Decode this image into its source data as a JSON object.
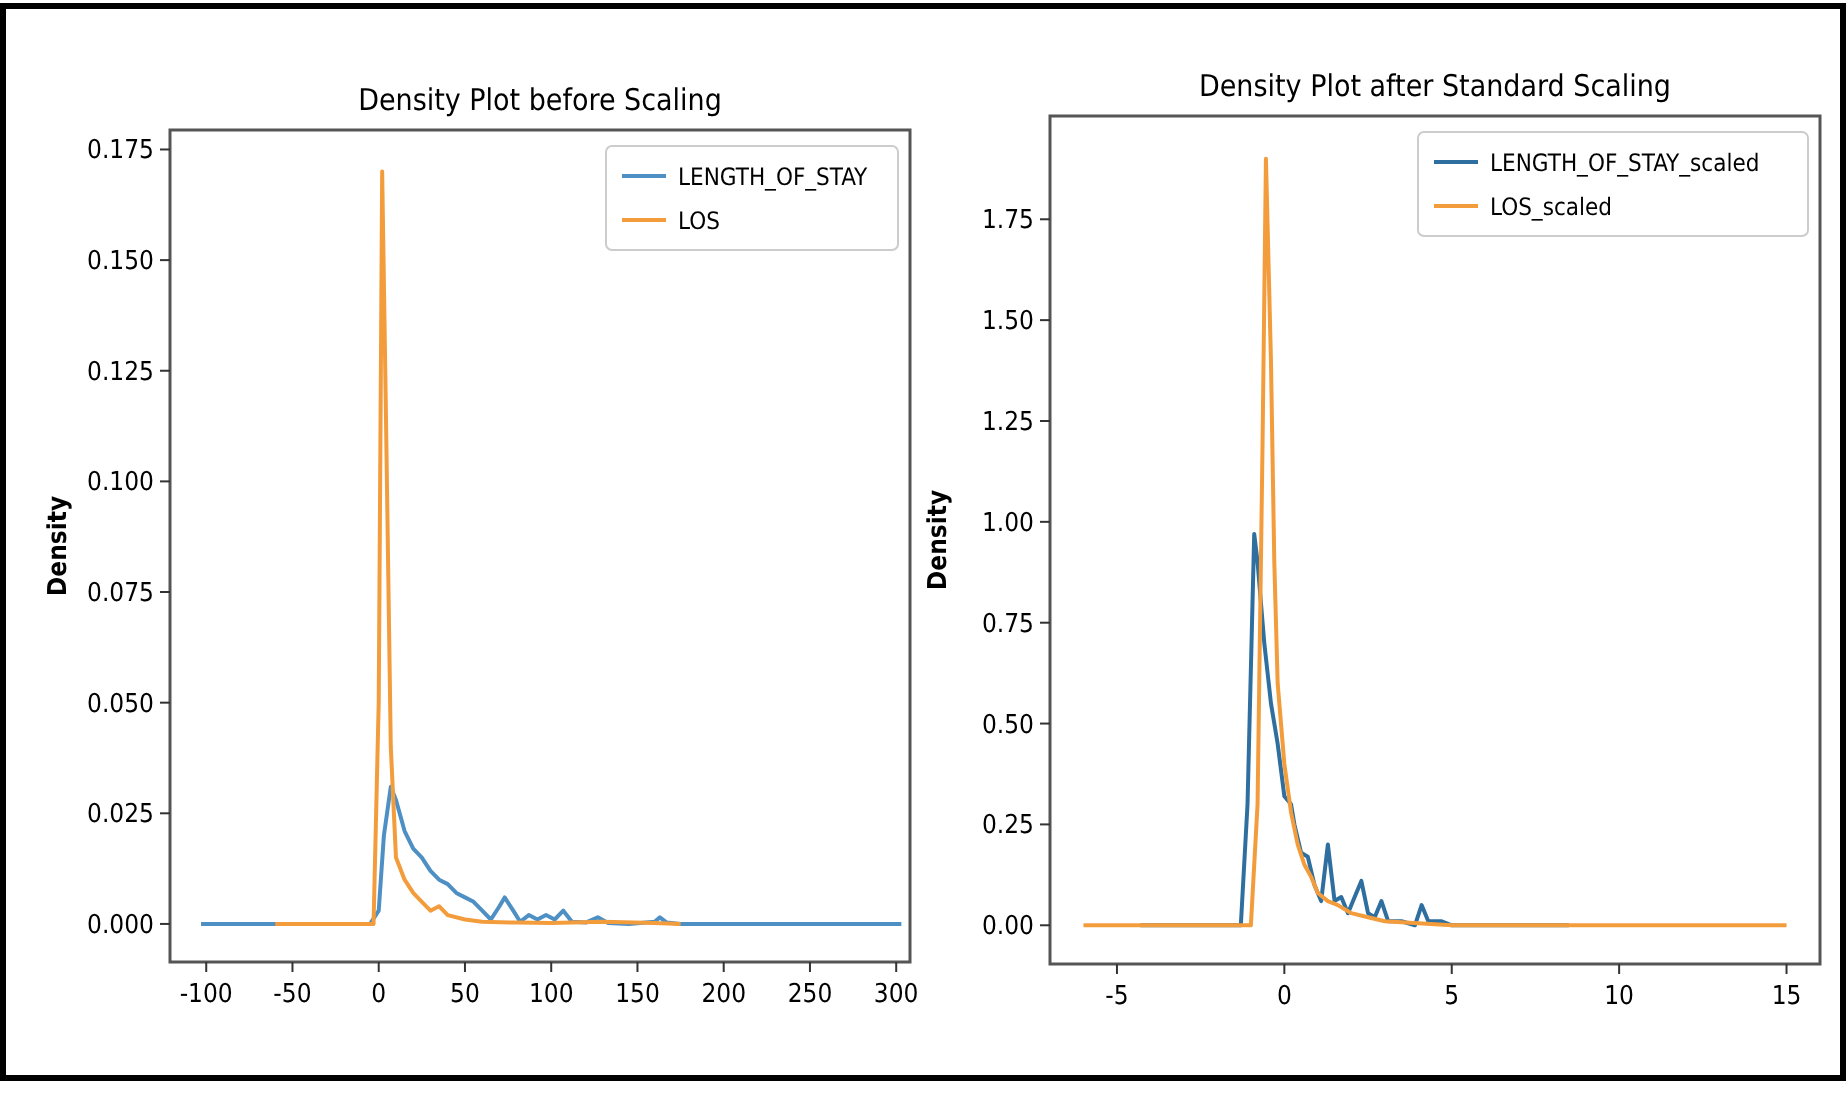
{
  "chart_data": [
    {
      "type": "line",
      "title": "Density Plot before Scaling",
      "ylabel": "Density",
      "legend": "top right",
      "xlim": [
        -121,
        308
      ],
      "ylim": [
        -0.0086,
        0.1794
      ],
      "xticks": [
        -100,
        -50,
        0,
        50,
        100,
        150,
        200,
        250,
        300
      ],
      "yticks": [
        {
          "value": 0,
          "label": "0.000"
        },
        {
          "value": 0.025,
          "label": "0.025"
        },
        {
          "value": 0.05,
          "label": "0.050"
        },
        {
          "value": 0.075,
          "label": "0.075"
        },
        {
          "value": 0.1,
          "label": "0.100"
        },
        {
          "value": 0.125,
          "label": "0.125"
        },
        {
          "value": 0.15,
          "label": "0.150"
        },
        {
          "value": 0.175,
          "label": "0.175"
        }
      ],
      "series": [
        {
          "name": "LENGTH_OF_STAY",
          "color": "#4e8fc4",
          "x": [
            -103,
            -5,
            0,
            3,
            7,
            10,
            15,
            20,
            25,
            30,
            35,
            40,
            45,
            50,
            55,
            60,
            65,
            70,
            73,
            78,
            82,
            87,
            92,
            97,
            102,
            107,
            112,
            120,
            127,
            133,
            145,
            160,
            163,
            167,
            175,
            303
          ],
          "values": [
            0,
            0,
            0.003,
            0.02,
            0.031,
            0.028,
            0.021,
            0.017,
            0.015,
            0.012,
            0.01,
            0.009,
            0.007,
            0.006,
            0.005,
            0.003,
            0.001,
            0.004,
            0.006,
            0.003,
            0.0005,
            0.002,
            0.001,
            0.002,
            0.001,
            0.003,
            0.0005,
            0.0003,
            0.0015,
            0.0002,
            0,
            0.0005,
            0.0015,
            0.0003,
            0,
            0
          ]
        },
        {
          "name": "LOS",
          "color": "#f39c3c",
          "x": [
            -60,
            -3,
            0,
            2,
            4,
            7,
            10,
            15,
            20,
            25,
            30,
            35,
            40,
            50,
            60,
            80,
            100,
            130,
            160,
            175
          ],
          "values": [
            0,
            0,
            0.05,
            0.17,
            0.12,
            0.04,
            0.015,
            0.01,
            0.007,
            0.005,
            0.003,
            0.004,
            0.002,
            0.001,
            0.0005,
            0.0003,
            0.0002,
            0.0005,
            0.0002,
            0
          ]
        }
      ]
    },
    {
      "type": "line",
      "title": "Density Plot after Standard Scaling",
      "ylabel": "Density",
      "legend": "top right",
      "xlim": [
        -7,
        16
      ],
      "ylim": [
        -0.096,
        2.006
      ],
      "xticks": [
        -5,
        0,
        5,
        10,
        15
      ],
      "yticks": [
        {
          "value": 0,
          "label": "0.00"
        },
        {
          "value": 0.25,
          "label": "0.25"
        },
        {
          "value": 0.5,
          "label": "0.50"
        },
        {
          "value": 0.75,
          "label": "0.75"
        },
        {
          "value": 1,
          "label": "1.00"
        },
        {
          "value": 1.25,
          "label": "1.25"
        },
        {
          "value": 1.5,
          "label": "1.50"
        },
        {
          "value": 1.75,
          "label": "1.75"
        }
      ],
      "series": [
        {
          "name": "LENGTH_OF_STAY_scaled",
          "color": "#2f6f9f",
          "x": [
            -4.3,
            -1.3,
            -1.1,
            -0.9,
            -0.8,
            -0.6,
            -0.4,
            -0.2,
            0,
            0.2,
            0.3,
            0.5,
            0.7,
            0.9,
            1.1,
            1.3,
            1.5,
            1.7,
            1.9,
            2.1,
            2.3,
            2.5,
            2.7,
            2.9,
            3.1,
            3.5,
            3.9,
            4.1,
            4.3,
            4.7,
            5,
            8.5
          ],
          "values": [
            0,
            0,
            0.3,
            0.97,
            0.9,
            0.7,
            0.55,
            0.45,
            0.32,
            0.3,
            0.25,
            0.18,
            0.17,
            0.1,
            0.06,
            0.2,
            0.06,
            0.07,
            0.03,
            0.07,
            0.11,
            0.03,
            0.02,
            0.06,
            0.01,
            0.01,
            0,
            0.05,
            0.01,
            0.01,
            0,
            0
          ]
        },
        {
          "name": "LOS_scaled",
          "color": "#f39c3c",
          "x": [
            -6,
            -1,
            -0.8,
            -0.65,
            -0.55,
            -0.4,
            -0.3,
            -0.2,
            0,
            0.2,
            0.4,
            0.6,
            0.8,
            1,
            1.3,
            1.6,
            2,
            2.5,
            3,
            4,
            5,
            15
          ],
          "values": [
            0,
            0,
            0.3,
            1.2,
            1.9,
            1.4,
            0.9,
            0.6,
            0.4,
            0.28,
            0.2,
            0.15,
            0.12,
            0.08,
            0.06,
            0.05,
            0.03,
            0.02,
            0.01,
            0.005,
            0,
            0
          ]
        }
      ]
    }
  ]
}
